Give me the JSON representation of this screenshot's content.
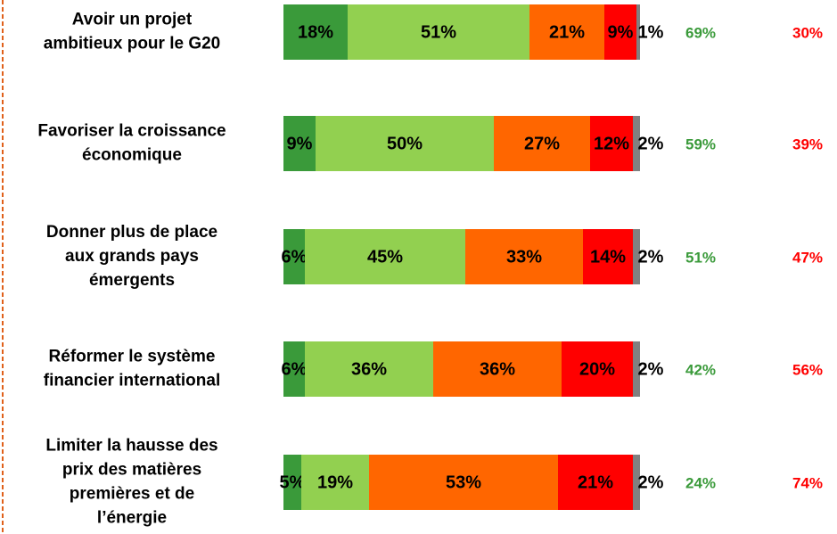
{
  "chart_data": {
    "type": "stacked-bar-horizontal",
    "categories": [
      "Avoir un projet\nambitieux pour le G20",
      "Favoriser la croissance\néconomique",
      "Donner plus de place\naux grands pays\némergents",
      "Réformer le système\nfinancier international",
      "Limiter la hausse des\nprix des matières\npremières et de\nl’énergie"
    ],
    "series": [
      {
        "color": "#3a9a3a",
        "values": [
          18,
          9,
          6,
          6,
          5
        ],
        "value_labels": [
          "18%",
          "9%",
          "6%",
          "6%",
          "5%"
        ]
      },
      {
        "color": "#92d050",
        "values": [
          51,
          50,
          45,
          36,
          19
        ],
        "value_labels": [
          "51%",
          "50%",
          "45%",
          "36%",
          "19%"
        ]
      },
      {
        "color": "#ff6600",
        "values": [
          21,
          27,
          33,
          36,
          53
        ],
        "value_labels": [
          "21%",
          "27%",
          "33%",
          "36%",
          "53%"
        ]
      },
      {
        "color": "#ff0000",
        "values": [
          9,
          12,
          14,
          20,
          21
        ],
        "value_labels": [
          "9%",
          "12%",
          "14%",
          "20%",
          "21%"
        ]
      },
      {
        "color": "#808080",
        "values": [
          1,
          2,
          2,
          2,
          2
        ],
        "value_labels": [
          "1%",
          "2%",
          "2%",
          "2%",
          "2%"
        ]
      }
    ],
    "totals": [
      {
        "color": "#3a9a3a",
        "values": [
          69,
          59,
          51,
          42,
          24
        ],
        "value_labels": [
          "69%",
          "59%",
          "51%",
          "42%",
          "24%"
        ]
      },
      {
        "color": "#ff0000",
        "values": [
          30,
          39,
          47,
          56,
          74
        ],
        "value_labels": [
          "30%",
          "39%",
          "47%",
          "56%",
          "74%"
        ]
      }
    ]
  }
}
